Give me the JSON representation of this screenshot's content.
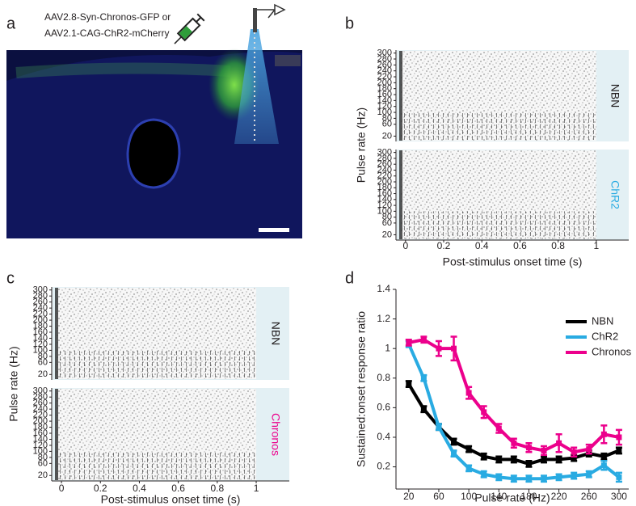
{
  "chart_data": [
    {
      "type": "image",
      "panel_label": "a",
      "annotations": [
        "AAV2.8-Syn-Chronos-GFP or",
        "AAV2.1-CAG-ChR2-mCherry"
      ]
    },
    {
      "type": "raster",
      "panel_label": "b",
      "xlabel": "Post-stimulus onset time (s)",
      "ylabel": "Pulse rate (Hz)",
      "xlim": [
        -0.05,
        1.17
      ],
      "xticks": [
        0,
        0.2,
        0.4,
        0.6,
        0.8,
        1
      ],
      "ylim": [
        2,
        310
      ],
      "yticks": [
        20,
        60,
        80,
        100,
        120,
        140,
        160,
        180,
        200,
        220,
        240,
        260,
        280,
        300
      ],
      "subplots": [
        {
          "name": "NBN",
          "color": "#231f20"
        },
        {
          "name": "ChR2",
          "color": "#29abe2"
        }
      ]
    },
    {
      "type": "raster",
      "panel_label": "c",
      "xlabel": "Post-stimulus onset time (s)",
      "ylabel": "Pulse rate (Hz)",
      "xlim": [
        -0.05,
        1.17
      ],
      "xticks": [
        0,
        0.2,
        0.4,
        0.6,
        0.8,
        1
      ],
      "ylim": [
        2,
        310
      ],
      "yticks": [
        20,
        60,
        80,
        100,
        120,
        140,
        160,
        180,
        200,
        220,
        240,
        260,
        280,
        300
      ],
      "subplots": [
        {
          "name": "NBN",
          "color": "#231f20"
        },
        {
          "name": "Chronos",
          "color": "#ec008c"
        }
      ]
    },
    {
      "type": "line",
      "panel_label": "d",
      "xlabel": "Pulse rate (Hz)",
      "ylabel": "Sustained:onset response ratio",
      "x": [
        20,
        40,
        60,
        80,
        100,
        120,
        140,
        160,
        180,
        200,
        220,
        240,
        260,
        280,
        300
      ],
      "xlim": [
        3,
        313
      ],
      "xticks": [
        20,
        60,
        100,
        140,
        180,
        220,
        260,
        300
      ],
      "ylim": [
        0.05,
        1.4
      ],
      "yticks": [
        0.2,
        0.4,
        0.6,
        0.8,
        1,
        1.2,
        1.4
      ],
      "legend": "upper right",
      "series": [
        {
          "name": "NBN",
          "color": "#000000",
          "values": [
            0.76,
            0.59,
            0.47,
            0.37,
            0.32,
            0.27,
            0.25,
            0.25,
            0.22,
            0.25,
            0.25,
            0.26,
            0.29,
            0.27,
            0.31
          ],
          "errors": [
            0.02,
            0.02,
            0.02,
            0.02,
            0.02,
            0.02,
            0.02,
            0.02,
            0.02,
            0.02,
            0.02,
            0.02,
            0.02,
            0.02,
            0.02
          ]
        },
        {
          "name": "ChR2",
          "color": "#29abe2",
          "values": [
            1.03,
            0.8,
            0.47,
            0.29,
            0.19,
            0.15,
            0.13,
            0.12,
            0.12,
            0.12,
            0.13,
            0.14,
            0.15,
            0.21,
            0.13
          ],
          "errors": [
            0.02,
            0.02,
            0.02,
            0.02,
            0.02,
            0.02,
            0.02,
            0.02,
            0.02,
            0.02,
            0.02,
            0.02,
            0.02,
            0.03,
            0.03
          ]
        },
        {
          "name": "Chronos",
          "color": "#ec008c",
          "values": [
            1.04,
            1.06,
            1.0,
            1.0,
            0.7,
            0.57,
            0.46,
            0.36,
            0.33,
            0.31,
            0.36,
            0.3,
            0.32,
            0.42,
            0.4
          ],
          "errors": [
            0.02,
            0.02,
            0.05,
            0.08,
            0.04,
            0.04,
            0.03,
            0.03,
            0.03,
            0.03,
            0.06,
            0.03,
            0.03,
            0.06,
            0.05
          ]
        }
      ]
    }
  ]
}
